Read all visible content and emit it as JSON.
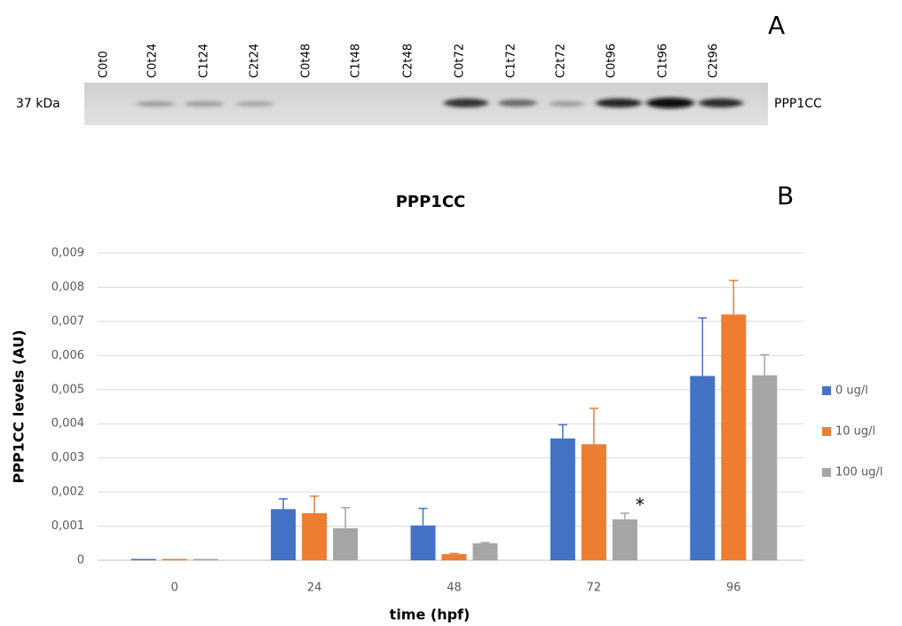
{
  "blot": {
    "panel": "A",
    "lanes": [
      "C0t0",
      "C0t24",
      "C1t24",
      "C2t24",
      "C0t48",
      "C1t48",
      "C2t48",
      "C0t72",
      "C1t72",
      "C2t72",
      "C0t96",
      "C1t96",
      "C2t96"
    ],
    "marker": "37 kDa",
    "protein": "PPP1CC"
  },
  "chart_data": {
    "type": "bar",
    "title": "PPP1CC",
    "panel": "B",
    "x_label": "time (hpf)",
    "y_label": "PPP1CC levels (AU)",
    "categories": [
      "0",
      "24",
      "48",
      "72",
      "96"
    ],
    "series": [
      {
        "name": "0 ug/l",
        "color": "#4472c4",
        "values": [
          4e-05,
          0.0015,
          0.00102,
          0.00357,
          0.0054
        ],
        "errors": [
          0,
          0.0003,
          0.0005,
          0.0004,
          0.0017
        ]
      },
      {
        "name": "10 ug/l",
        "color": "#ed7d31",
        "values": [
          4e-05,
          0.00138,
          0.00018,
          0.0034,
          0.0072
        ],
        "errors": [
          0,
          0.0005,
          2e-05,
          0.00105,
          0.001
        ]
      },
      {
        "name": "100 ug/l",
        "color": "#a5a5a5",
        "values": [
          4e-05,
          0.00094,
          0.0005,
          0.0012,
          0.00542
        ],
        "errors": [
          0,
          0.0006,
          2e-05,
          0.00018,
          0.0006
        ]
      }
    ],
    "annotations": [
      "*"
    ],
    "ylim": [
      0,
      0.009
    ],
    "yticks": [
      0,
      {
        "value": 0.001,
        "label": "0,001"
      },
      {
        "value": 0.002,
        "label": "0,002"
      },
      {
        "value": 0.003,
        "label": "0,003"
      },
      {
        "value": 0.004,
        "label": "0,004"
      },
      {
        "value": 0.005,
        "label": "0,005"
      },
      {
        "value": 0.006,
        "label": "0,006"
      },
      {
        "value": 0.007,
        "label": "0,007"
      },
      {
        "value": 0.008,
        "label": "0,008"
      },
      {
        "value": 0.009,
        "label": "0,009"
      }
    ],
    "grid": true,
    "legend": "right"
  }
}
